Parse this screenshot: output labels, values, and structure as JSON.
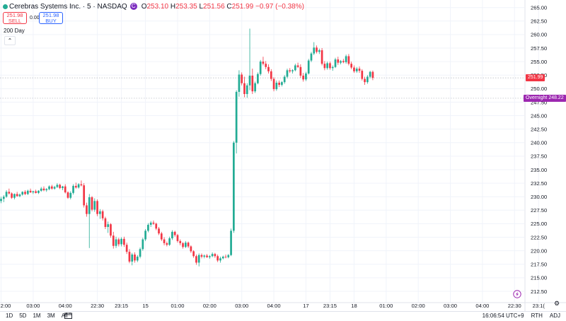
{
  "header": {
    "symbol": "Cerebras Systems Inc. · 5 · NASDAQ",
    "badge": "C",
    "o_label": "O",
    "o": "253.10",
    "h_label": "H",
    "h": "253.35",
    "l_label": "L",
    "l": "251.56",
    "c_label": "C",
    "c": "251.99",
    "change": "−0.97 (−0.38%)"
  },
  "trade": {
    "sell_price": "251.98",
    "sell_label": "SELL",
    "spread": "0.00",
    "buy_price": "251.98",
    "buy_label": "BUY"
  },
  "indicator": {
    "label": "200 Day",
    "collapse_icon": "chevron-up-icon"
  },
  "price_tags": {
    "last": {
      "value": "251.99",
      "color": "#f23645"
    },
    "overnight": {
      "label": "Overnight",
      "value": "248.22",
      "color": "#9c27b0"
    }
  },
  "bottom_bar": {
    "ranges": [
      "1D",
      "5D",
      "1M",
      "3M",
      "All"
    ],
    "calendar_icon": "calendar-icon",
    "time": "16:06:54 UTC+9",
    "session": "RTH",
    "adj": "ADJ",
    "settings_icon": "gear-icon"
  },
  "chart_data": {
    "type": "candlestick",
    "colors": {
      "up": "#22ab94",
      "down": "#f23645"
    },
    "yaxis": {
      "ylim": [
        210.4,
        266.4
      ],
      "ticks": [
        "265.00",
        "262.50",
        "260.00",
        "257.50",
        "255.00",
        "252.50",
        "250.00",
        "247.50",
        "245.00",
        "242.50",
        "240.00",
        "237.50",
        "235.00",
        "232.50",
        "230.00",
        "227.50",
        "225.00",
        "222.50",
        "220.00",
        "217.50",
        "215.00",
        "212.50"
      ]
    },
    "xaxis": {
      "ticks": [
        {
          "label": "2:00",
          "i": 0
        },
        {
          "label": "03:00",
          "i": 12
        },
        {
          "label": "04:00",
          "i": 24
        },
        {
          "label": "22:30",
          "i": 36
        },
        {
          "label": "23:15",
          "i": 45
        },
        {
          "label": "15",
          "i": 54
        },
        {
          "label": "01:00",
          "i": 66
        },
        {
          "label": "02:00",
          "i": 78
        },
        {
          "label": "03:00",
          "i": 90
        },
        {
          "label": "04:00",
          "i": 102
        },
        {
          "label": "17",
          "i": 114
        },
        {
          "label": "23:15",
          "i": 123
        },
        {
          "label": "18",
          "i": 132
        },
        {
          "label": "01:00",
          "i": 144
        },
        {
          "label": "02:00",
          "i": 156
        },
        {
          "label": "03:00",
          "i": 168
        },
        {
          "label": "04:00",
          "i": 180
        },
        {
          "label": "22:30",
          "i": 192
        },
        {
          "label": "23:1(",
          "i": 201
        }
      ]
    },
    "hlines": [
      251.99,
      248.22
    ],
    "candles": [
      [
        229.2,
        230.0,
        228.8,
        229.6
      ],
      [
        229.6,
        230.3,
        229.0,
        230.0
      ],
      [
        230.0,
        231.2,
        229.8,
        230.9
      ],
      [
        230.9,
        231.5,
        230.4,
        230.6
      ],
      [
        230.6,
        230.8,
        229.6,
        229.8
      ],
      [
        229.8,
        230.6,
        229.5,
        230.5
      ],
      [
        230.5,
        230.9,
        230.0,
        230.1
      ],
      [
        230.1,
        230.6,
        229.9,
        230.4
      ],
      [
        230.4,
        231.0,
        230.2,
        230.9
      ],
      [
        230.9,
        231.2,
        230.3,
        230.5
      ],
      [
        230.5,
        231.3,
        230.3,
        231.1
      ],
      [
        231.1,
        231.5,
        230.7,
        230.8
      ],
      [
        230.8,
        231.1,
        230.5,
        231.0
      ],
      [
        231.0,
        231.3,
        230.6,
        230.7
      ],
      [
        230.7,
        231.2,
        230.5,
        231.1
      ],
      [
        231.1,
        231.8,
        230.9,
        231.5
      ],
      [
        231.5,
        231.9,
        231.0,
        231.2
      ],
      [
        231.2,
        231.6,
        230.9,
        231.4
      ],
      [
        231.4,
        232.1,
        231.2,
        231.9
      ],
      [
        231.9,
        232.2,
        231.3,
        231.5
      ],
      [
        231.5,
        232.0,
        231.3,
        231.8
      ],
      [
        231.8,
        232.5,
        231.6,
        232.2
      ],
      [
        232.2,
        232.4,
        231.4,
        231.6
      ],
      [
        231.6,
        232.0,
        231.2,
        231.9
      ],
      [
        231.9,
        232.3,
        230.6,
        230.8
      ],
      [
        230.8,
        231.0,
        229.6,
        229.8
      ],
      [
        229.8,
        231.0,
        229.5,
        230.7
      ],
      [
        230.7,
        232.3,
        230.4,
        232.0
      ],
      [
        232.0,
        232.6,
        231.5,
        231.7
      ],
      [
        231.7,
        232.5,
        231.5,
        232.3
      ],
      [
        232.3,
        233.0,
        231.9,
        232.1
      ],
      [
        232.1,
        232.5,
        228.0,
        228.4
      ],
      [
        228.4,
        228.9,
        226.3,
        226.8
      ],
      [
        226.8,
        230.5,
        220.5,
        229.9
      ],
      [
        229.9,
        230.1,
        227.3,
        227.6
      ],
      [
        227.6,
        229.7,
        227.2,
        229.2
      ],
      [
        229.2,
        229.5,
        226.4,
        226.8
      ],
      [
        226.8,
        227.7,
        225.9,
        227.3
      ],
      [
        227.3,
        227.6,
        225.6,
        226.0
      ],
      [
        226.0,
        226.3,
        224.0,
        224.4
      ],
      [
        224.4,
        225.4,
        223.3,
        224.9
      ],
      [
        224.9,
        225.1,
        222.4,
        222.8
      ],
      [
        222.8,
        223.5,
        220.4,
        220.9
      ],
      [
        220.9,
        222.6,
        220.5,
        222.1
      ],
      [
        222.1,
        222.4,
        220.8,
        221.2
      ],
      [
        221.2,
        222.5,
        220.8,
        222.2
      ],
      [
        222.2,
        222.6,
        220.7,
        221.1
      ],
      [
        221.1,
        221.5,
        219.4,
        219.8
      ],
      [
        219.8,
        220.3,
        217.7,
        218.0
      ],
      [
        218.0,
        219.6,
        217.3,
        219.3
      ],
      [
        219.3,
        219.7,
        217.8,
        218.2
      ],
      [
        218.2,
        219.2,
        217.9,
        218.9
      ],
      [
        218.9,
        220.6,
        218.6,
        220.3
      ],
      [
        220.3,
        222.4,
        220.0,
        222.1
      ],
      [
        222.1,
        224.0,
        221.8,
        223.7
      ],
      [
        223.7,
        225.1,
        223.4,
        224.8
      ],
      [
        224.8,
        225.5,
        224.4,
        225.2
      ],
      [
        225.2,
        225.6,
        224.8,
        225.0
      ],
      [
        225.0,
        225.2,
        223.8,
        224.1
      ],
      [
        224.1,
        224.4,
        222.9,
        223.2
      ],
      [
        223.2,
        223.5,
        221.8,
        222.1
      ],
      [
        222.1,
        222.5,
        221.0,
        221.4
      ],
      [
        221.4,
        221.7,
        220.8,
        221.1
      ],
      [
        221.1,
        222.6,
        220.9,
        222.3
      ],
      [
        222.3,
        223.8,
        222.0,
        223.5
      ],
      [
        223.5,
        223.7,
        222.6,
        222.9
      ],
      [
        222.9,
        223.1,
        221.5,
        221.8
      ],
      [
        221.8,
        222.1,
        221.0,
        221.4
      ],
      [
        221.4,
        221.6,
        220.4,
        220.7
      ],
      [
        220.7,
        221.8,
        220.5,
        221.5
      ],
      [
        221.5,
        221.7,
        220.5,
        220.8
      ],
      [
        220.8,
        221.0,
        219.6,
        219.9
      ],
      [
        219.9,
        220.1,
        218.7,
        219.0
      ],
      [
        219.0,
        219.3,
        217.4,
        217.8
      ],
      [
        217.8,
        219.5,
        217.1,
        219.2
      ],
      [
        219.2,
        219.5,
        218.6,
        218.9
      ],
      [
        218.9,
        219.3,
        218.6,
        219.1
      ],
      [
        219.1,
        219.4,
        218.7,
        218.8
      ],
      [
        218.8,
        219.2,
        218.5,
        219.0
      ],
      [
        219.0,
        219.7,
        218.8,
        219.4
      ],
      [
        219.4,
        219.6,
        218.7,
        219.0
      ],
      [
        219.0,
        219.3,
        217.9,
        218.2
      ],
      [
        218.2,
        218.9,
        217.8,
        218.6
      ],
      [
        218.6,
        219.1,
        218.4,
        218.9
      ],
      [
        218.9,
        219.3,
        218.6,
        218.8
      ],
      [
        218.8,
        219.4,
        218.6,
        219.2
      ],
      [
        219.2,
        224.1,
        219.0,
        223.7
      ],
      [
        223.7,
        240.3,
        223.3,
        240.0
      ],
      [
        240.0,
        249.7,
        238.0,
        249.4
      ],
      [
        249.4,
        253.4,
        248.5,
        252.6
      ],
      [
        252.6,
        253.0,
        250.6,
        251.0
      ],
      [
        251.0,
        252.2,
        248.4,
        249.0
      ],
      [
        249.0,
        251.0,
        248.3,
        250.6
      ],
      [
        250.6,
        261.1,
        249.7,
        252.4
      ],
      [
        252.4,
        253.7,
        249.0,
        249.5
      ],
      [
        249.5,
        251.3,
        249.2,
        251.0
      ],
      [
        251.0,
        253.0,
        250.8,
        252.7
      ],
      [
        252.7,
        255.3,
        252.4,
        255.0
      ],
      [
        255.0,
        255.9,
        254.3,
        254.6
      ],
      [
        254.6,
        255.1,
        253.6,
        254.0
      ],
      [
        254.0,
        254.5,
        252.8,
        253.2
      ],
      [
        253.2,
        253.6,
        251.4,
        251.8
      ],
      [
        251.8,
        252.1,
        249.5,
        249.9
      ],
      [
        249.9,
        251.5,
        249.6,
        251.1
      ],
      [
        251.1,
        251.5,
        250.3,
        250.7
      ],
      [
        250.7,
        251.4,
        250.4,
        251.2
      ],
      [
        251.2,
        252.5,
        250.9,
        252.2
      ],
      [
        252.2,
        253.7,
        251.9,
        253.4
      ],
      [
        253.4,
        253.8,
        252.9,
        253.2
      ],
      [
        253.2,
        253.6,
        252.8,
        253.4
      ],
      [
        253.4,
        254.6,
        253.2,
        254.3
      ],
      [
        254.3,
        254.8,
        253.8,
        254.0
      ],
      [
        254.0,
        254.5,
        252.0,
        252.4
      ],
      [
        252.4,
        252.9,
        251.3,
        251.7
      ],
      [
        251.7,
        253.1,
        251.4,
        252.8
      ],
      [
        252.8,
        255.5,
        252.6,
        255.2
      ],
      [
        255.2,
        256.8,
        254.9,
        256.5
      ],
      [
        256.5,
        258.6,
        256.2,
        257.6
      ],
      [
        257.6,
        258.0,
        256.5,
        256.8
      ],
      [
        256.8,
        257.4,
        256.4,
        257.1
      ],
      [
        257.1,
        257.5,
        254.3,
        254.6
      ],
      [
        254.6,
        255.1,
        253.4,
        253.8
      ],
      [
        253.8,
        255.0,
        253.5,
        254.7
      ],
      [
        254.7,
        255.0,
        253.5,
        253.8
      ],
      [
        253.8,
        254.3,
        253.3,
        254.0
      ],
      [
        254.0,
        255.7,
        253.8,
        255.4
      ],
      [
        255.4,
        255.9,
        254.4,
        254.8
      ],
      [
        254.8,
        255.3,
        254.5,
        255.1
      ],
      [
        255.1,
        255.5,
        254.7,
        254.9
      ],
      [
        254.9,
        256.3,
        254.6,
        256.0
      ],
      [
        256.0,
        256.4,
        254.3,
        254.6
      ],
      [
        254.6,
        255.0,
        253.6,
        253.9
      ],
      [
        253.9,
        254.3,
        252.9,
        253.2
      ],
      [
        253.2,
        254.0,
        252.9,
        253.7
      ],
      [
        253.7,
        254.1,
        252.9,
        253.3
      ],
      [
        253.3,
        253.6,
        251.5,
        251.8
      ],
      [
        251.8,
        252.2,
        250.7,
        251.2
      ],
      [
        251.2,
        252.5,
        250.9,
        252.2
      ],
      [
        252.2,
        253.3,
        251.9,
        253.1
      ],
      [
        253.1,
        253.35,
        251.56,
        251.99
      ]
    ]
  }
}
